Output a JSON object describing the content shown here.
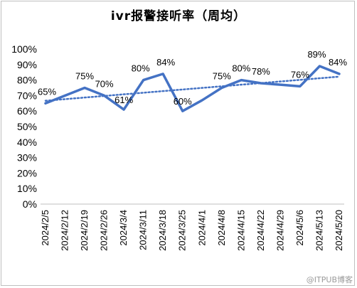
{
  "chart_data": {
    "type": "line",
    "title": "ivr报警接听率（周均）",
    "categories": [
      "2024/2/5",
      "2024/2/12",
      "2024/2/19",
      "2024/2/26",
      "2024/3/4",
      "2024/3/11",
      "2024/3/18",
      "2024/3/25",
      "2024/4/1",
      "2024/4/8",
      "2024/4/15",
      "2024/4/22",
      "2024/4/29",
      "2024/5/6",
      "2024/5/13",
      "2024/5/20"
    ],
    "series": [
      {
        "values": [
          65,
          70,
          75,
          70,
          61,
          80,
          84,
          60,
          67,
          75,
          80,
          78,
          77,
          76,
          89,
          84
        ],
        "labels": [
          "65%",
          null,
          "75%",
          "70%",
          "61%",
          "80%",
          "84%",
          "60%",
          null,
          "75%",
          "80%",
          "78%",
          null,
          "76%",
          "89%",
          "84%"
        ],
        "color": "#4472c4"
      }
    ],
    "trendline": {
      "style": "dotted linear",
      "color": "#4472c4"
    },
    "yticks": [
      "0%",
      "10%",
      "20%",
      "30%",
      "40%",
      "50%",
      "60%",
      "70%",
      "80%",
      "90%",
      "100%"
    ],
    "ylim": [
      0,
      100
    ],
    "grid": false,
    "legend": "none"
  },
  "watermark": "@ITPUB博客"
}
